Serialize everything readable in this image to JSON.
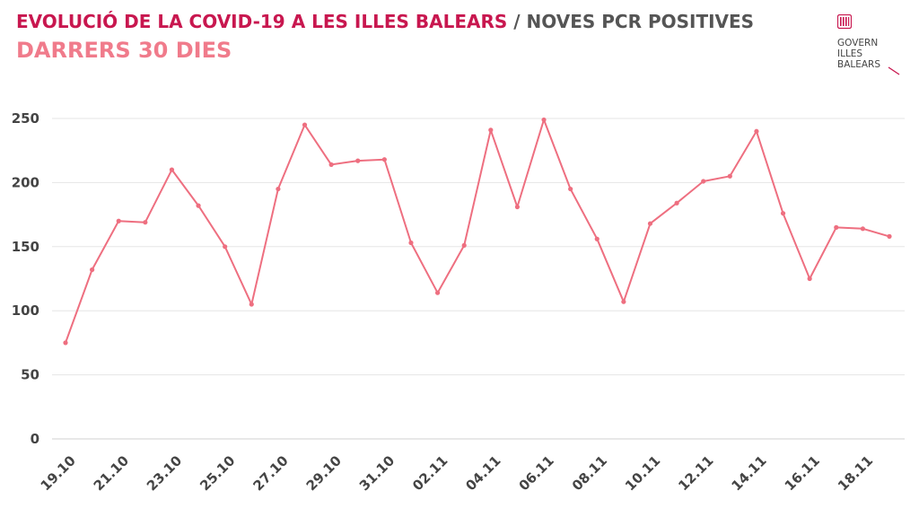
{
  "header": {
    "title_main": "EVOLUCIÓ DE LA COVID-19 A LES ILLES BALEARS",
    "title_separator": "/",
    "title_sub": "NOVES PCR POSITIVES",
    "period": "DARRERS 30 DIES"
  },
  "logo": {
    "line1": "GOVERN",
    "line2": "ILLES",
    "line3": "BALEARS",
    "icon": "govern-illes-balears-logo"
  },
  "colors": {
    "title": "#c8174f",
    "period": "#f07b8b",
    "line": "#ee6f80",
    "grid": "#e6e6e6"
  },
  "chart_data": {
    "type": "line",
    "title": "",
    "xlabel": "",
    "ylabel": "",
    "ylim": [
      0,
      250
    ],
    "yticks": [
      0,
      50,
      100,
      150,
      200,
      250
    ],
    "grid": true,
    "x": [
      "19.10",
      "20.10",
      "21.10",
      "22.10",
      "23.10",
      "24.10",
      "25.10",
      "26.10",
      "27.10",
      "28.10",
      "29.10",
      "30.10",
      "31.10",
      "01.11",
      "02.11",
      "03.11",
      "04.11",
      "05.11",
      "06.11",
      "07.11",
      "08.11",
      "09.11",
      "10.11",
      "11.11",
      "12.11",
      "13.11",
      "14.11",
      "15.11",
      "16.11",
      "17.11",
      "18.11",
      "19.11"
    ],
    "xtick_labels": [
      "19.10",
      "21.10",
      "23.10",
      "25.10",
      "27.10",
      "29.10",
      "31.10",
      "02.11",
      "04.11",
      "06.11",
      "08.11",
      "10.11",
      "12.11",
      "14.11",
      "16.11",
      "18.11"
    ],
    "series": [
      {
        "values": [
          75,
          132,
          170,
          169,
          210,
          182,
          150,
          105,
          195,
          245,
          214,
          217,
          218,
          153,
          114,
          151,
          241,
          181,
          249,
          195,
          156,
          107,
          168,
          184,
          201,
          205,
          240,
          176,
          125,
          165,
          164,
          158
        ]
      }
    ]
  }
}
